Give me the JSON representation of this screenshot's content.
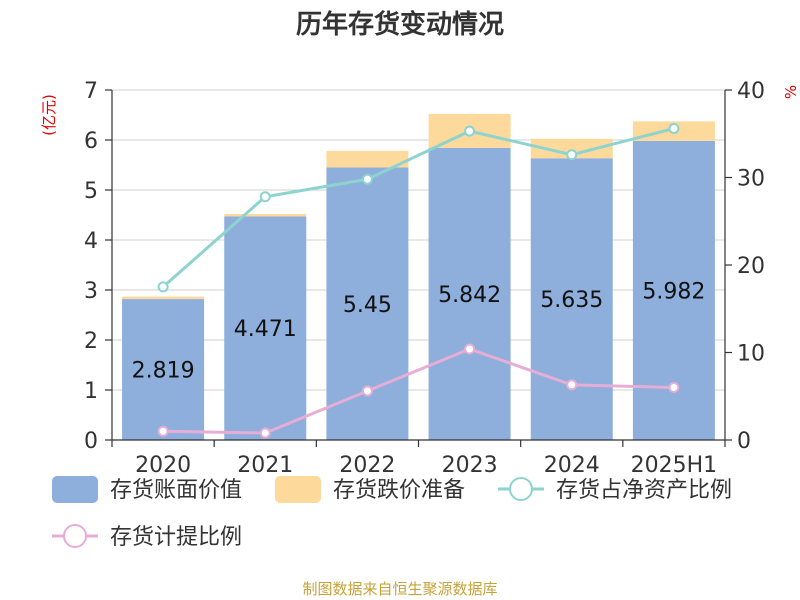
{
  "chart_data": {
    "type": "bar",
    "title": "历年存货变动情况",
    "left_unit": "(亿元)",
    "right_unit": "%",
    "categories": [
      "2020",
      "2021",
      "2022",
      "2023",
      "2024",
      "2025H1"
    ],
    "left_axis": {
      "min": 0,
      "max": 7,
      "ticks": [
        "0",
        "1",
        "2",
        "3",
        "4",
        "5",
        "6",
        "7"
      ]
    },
    "right_axis": {
      "min": 0,
      "max": 40,
      "ticks": [
        "0",
        "10",
        "20",
        "30",
        "40"
      ]
    },
    "grid": true,
    "legend_position": "bottom",
    "series": [
      {
        "name": "存货账面价值",
        "type": "bar",
        "stack": "inventory",
        "axis": "left",
        "color": "#8eaedb",
        "values": [
          2.819,
          4.471,
          5.45,
          5.842,
          5.635,
          5.982
        ],
        "labels": [
          "2.819",
          "4.471",
          "5.45",
          "5.842",
          "5.635",
          "5.982"
        ]
      },
      {
        "name": "存货跌价准备",
        "type": "bar",
        "stack": "inventory",
        "axis": "left",
        "color": "#fdd99b",
        "values": [
          0.05,
          0.05,
          0.33,
          0.68,
          0.39,
          0.39
        ]
      },
      {
        "name": "存货占净资产比例",
        "type": "line",
        "axis": "right",
        "color": "#8dd3d0",
        "values": [
          17.5,
          27.8,
          29.8,
          35.3,
          32.6,
          35.6
        ]
      },
      {
        "name": "存货计提比例",
        "type": "line",
        "axis": "right",
        "color": "#e6aed6",
        "values": [
          1.0,
          0.8,
          5.6,
          10.4,
          6.3,
          6.0
        ]
      }
    ]
  },
  "source": "制图数据来自恒生聚源数据库"
}
